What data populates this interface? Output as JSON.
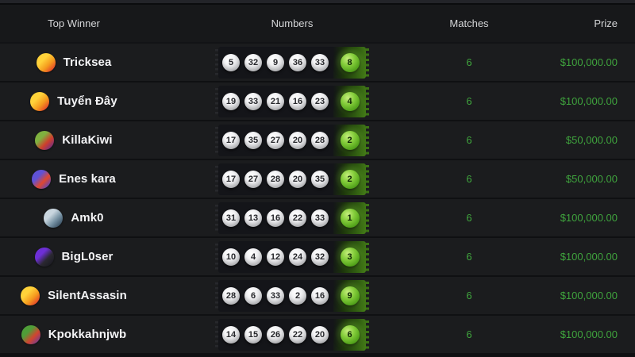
{
  "header": {
    "columns": [
      "Top Winner",
      "Numbers",
      "Matches",
      "Prize"
    ]
  },
  "rows": [
    {
      "name": "Tricksea",
      "avatar_kind": "laughing-emoji",
      "avatar_colors": [
        "#ffd23a",
        "#f59b1e",
        "#e23a2a"
      ],
      "numbers": [
        "5",
        "32",
        "9",
        "36",
        "33"
      ],
      "bonus": "8",
      "matches": "6",
      "prize": "$100,000.00"
    },
    {
      "name": "Tuyển Đây",
      "avatar_kind": "laughing-emoji",
      "avatar_colors": [
        "#ffd23a",
        "#f59b1e",
        "#e23a2a"
      ],
      "numbers": [
        "19",
        "33",
        "21",
        "16",
        "23"
      ],
      "bonus": "4",
      "matches": "6",
      "prize": "$100,000.00"
    },
    {
      "name": "KillaKiwi",
      "avatar_kind": "kiwi-bird",
      "avatar_colors": [
        "#7fb13f",
        "#cf3f2c",
        "#6e2d85"
      ],
      "numbers": [
        "17",
        "35",
        "27",
        "20",
        "28"
      ],
      "bonus": "2",
      "matches": "6",
      "prize": "$50,000.00"
    },
    {
      "name": "Enes kara",
      "avatar_kind": "dino-emoji",
      "avatar_colors": [
        "#6052d6",
        "#e0482e",
        "#5246c4"
      ],
      "numbers": [
        "17",
        "27",
        "28",
        "20",
        "35"
      ],
      "bonus": "2",
      "matches": "6",
      "prize": "$50,000.00"
    },
    {
      "name": "Amk0",
      "avatar_kind": "earth-photo",
      "avatar_colors": [
        "#c9d6df",
        "#7691a3",
        "#33495c"
      ],
      "numbers": [
        "31",
        "13",
        "16",
        "22",
        "33"
      ],
      "bonus": "1",
      "matches": "6",
      "prize": "$100,000.00"
    },
    {
      "name": "BigL0ser",
      "avatar_kind": "black-cat",
      "avatar_colors": [
        "#6d2fd6",
        "#2a2830",
        "#1a1a21"
      ],
      "numbers": [
        "10",
        "4",
        "12",
        "24",
        "32"
      ],
      "bonus": "3",
      "matches": "6",
      "prize": "$100,000.00"
    },
    {
      "name": "SilentAssasin",
      "avatar_kind": "laughing-emoji",
      "avatar_colors": [
        "#ffd23a",
        "#f59b1e",
        "#e23a2a"
      ],
      "numbers": [
        "28",
        "6",
        "33",
        "2",
        "16"
      ],
      "bonus": "9",
      "matches": "6",
      "prize": "$100,000.00"
    },
    {
      "name": "Kpokkahnjwb",
      "avatar_kind": "monster-emoji",
      "avatar_colors": [
        "#4f9e38",
        "#d2452f",
        "#743b8f"
      ],
      "numbers": [
        "14",
        "15",
        "26",
        "22",
        "20"
      ],
      "bonus": "6",
      "matches": "6",
      "prize": "$100,000.00"
    }
  ],
  "colors": {
    "page_bg": "#121316",
    "header_bg": "#17181a",
    "row_bg": "#1b1c1e",
    "ticket_bg": "#141519",
    "accent_green": "#3fa33d",
    "header_text": "#d5d6d8",
    "name_text": "#f4f4f6",
    "ball_white": "#f1f1f3",
    "ball_green": "#83cc3a"
  }
}
